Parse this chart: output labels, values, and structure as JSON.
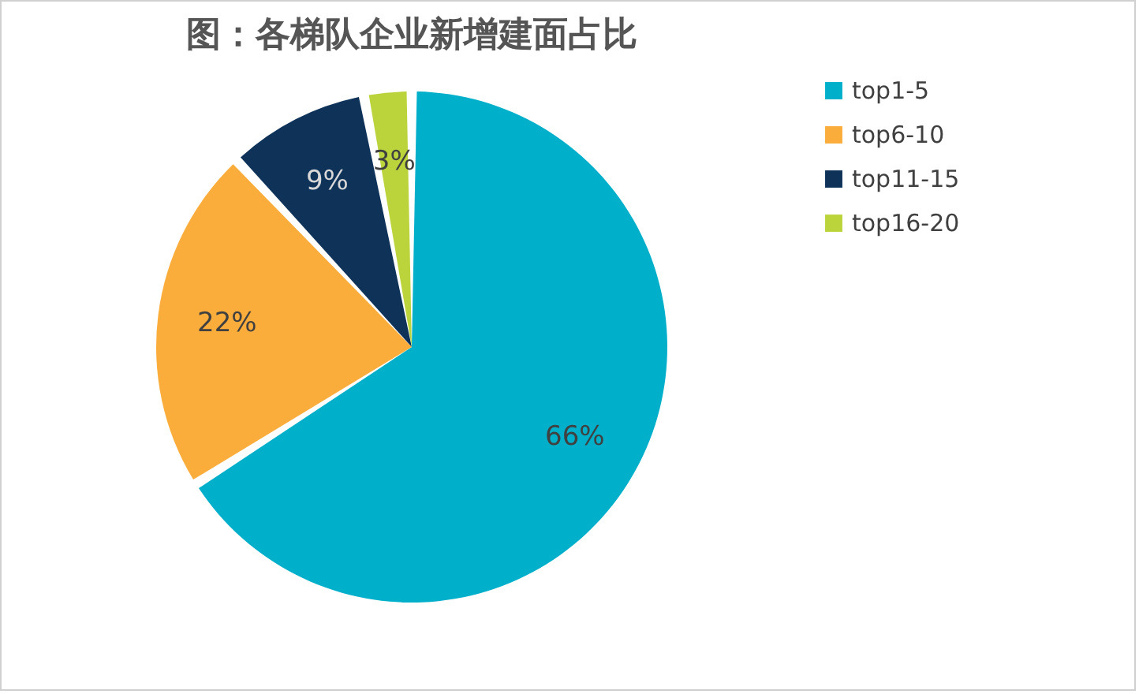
{
  "chart_data": {
    "type": "pie",
    "title": "图：各梯队企业新增建面占比",
    "categories": [
      "top1-5",
      "top6-10",
      "top11-15",
      "top16-20"
    ],
    "values": [
      66,
      22,
      9,
      3
    ],
    "colors": [
      "#00b0ca",
      "#fbad3c",
      "#0e3258",
      "#bcd43c"
    ],
    "value_labels": [
      "66%",
      "22%",
      "9%",
      "3%"
    ],
    "legend": "right"
  }
}
